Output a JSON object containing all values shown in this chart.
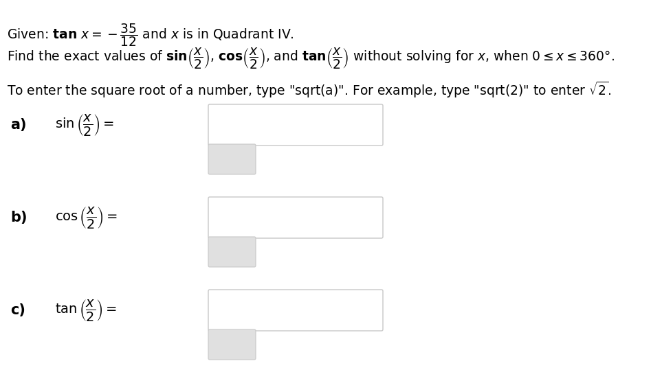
{
  "background_color": "#ffffff",
  "text_color": "#000000",
  "input_box_color": "#ffffff",
  "input_box_border": "#c8c8c8",
  "small_box_color": "#e0e0e0",
  "small_box_border": "#c8c8c8",
  "font_size_main": 13.5,
  "font_size_label": 15,
  "font_size_expr": 14,
  "label_a": "a)",
  "label_b": "b)",
  "label_c": "c)"
}
